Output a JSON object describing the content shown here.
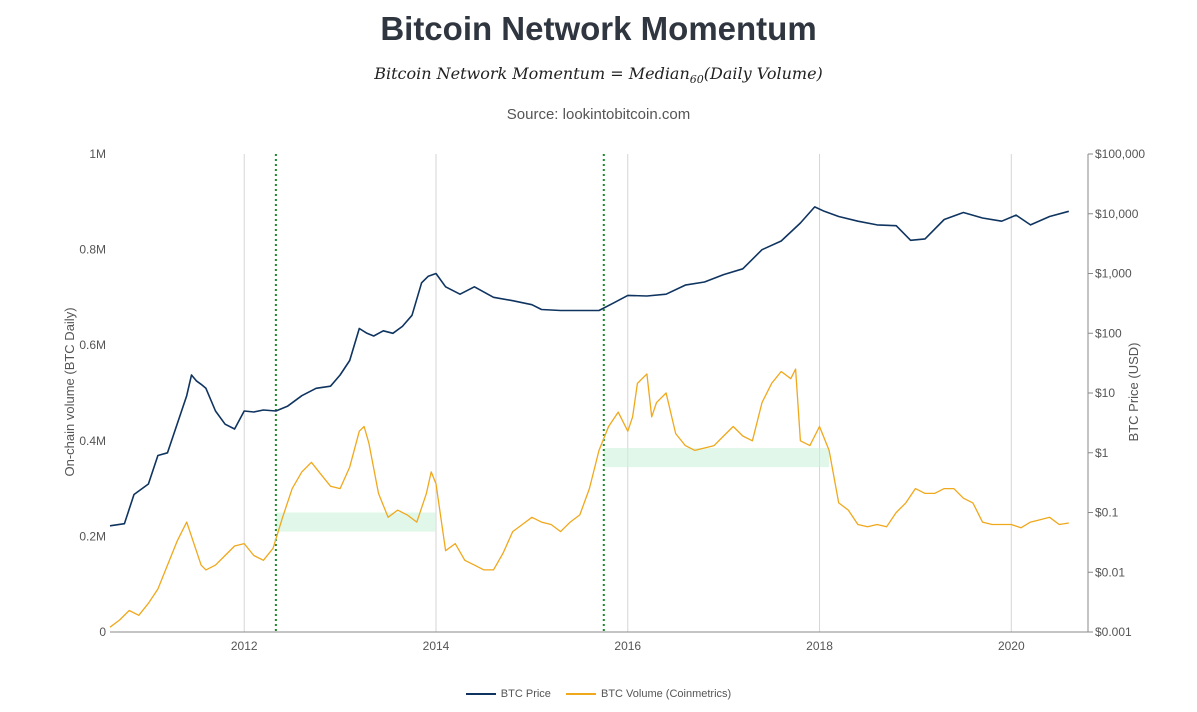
{
  "chart_data": {
    "type": "line",
    "title": "Bitcoin Network Momentum",
    "formula": {
      "lhs": "Bitcoin Network Momentum",
      "eq": " = ",
      "fn": "Median",
      "sub": "60",
      "arg": "(Daily Volume)"
    },
    "subtitle": "Source: lookintobitcoin.com",
    "ylabel_left": "On-chain volume (BTC Daily)",
    "ylabel_right": "BTC Price (USD)",
    "xlim": [
      2010.6,
      2020.8
    ],
    "ylim_left": [
      0,
      1000000
    ],
    "ylim_right_log10": [
      -3,
      5
    ],
    "x_ticks": [
      {
        "value": 2012,
        "label": "2012"
      },
      {
        "value": 2014,
        "label": "2014"
      },
      {
        "value": 2016,
        "label": "2016"
      },
      {
        "value": 2018,
        "label": "2018"
      },
      {
        "value": 2020,
        "label": "2020"
      }
    ],
    "y_left_ticks": [
      {
        "value": 0,
        "label": "0"
      },
      {
        "value": 200000,
        "label": "0.2M"
      },
      {
        "value": 400000,
        "label": "0.4M"
      },
      {
        "value": 600000,
        "label": "0.6M"
      },
      {
        "value": 800000,
        "label": "0.8M"
      },
      {
        "value": 1000000,
        "label": "1M"
      }
    ],
    "y_right_ticks": [
      {
        "value": 0.001,
        "label": "$0.001"
      },
      {
        "value": 0.01,
        "label": "$0.01"
      },
      {
        "value": 0.1,
        "label": "$0.1"
      },
      {
        "value": 1,
        "label": "$1"
      },
      {
        "value": 10,
        "label": "$10"
      },
      {
        "value": 100,
        "label": "$100"
      },
      {
        "value": 1000,
        "label": "$1,000"
      },
      {
        "value": 10000,
        "label": "$10,000"
      },
      {
        "value": 100000,
        "label": "$100,000"
      }
    ],
    "grid": {
      "vertical": true,
      "horizontal": false
    },
    "legend_position": "bottom-center",
    "signals": [
      2012.33,
      2015.75
    ],
    "bands": [
      {
        "x": [
          2012.33,
          2014.0
        ],
        "y": [
          210000,
          250000
        ]
      },
      {
        "x": [
          2015.75,
          2018.1
        ],
        "y": [
          345000,
          385000
        ]
      }
    ],
    "series": [
      {
        "name": "BTC Price",
        "axis": "right",
        "color": "#0f3460",
        "x": [
          2010.6,
          2010.75,
          2010.85,
          2011.0,
          2011.1,
          2011.2,
          2011.3,
          2011.4,
          2011.45,
          2011.5,
          2011.55,
          2011.6,
          2011.7,
          2011.8,
          2011.9,
          2012.0,
          2012.1,
          2012.2,
          2012.33,
          2012.45,
          2012.6,
          2012.75,
          2012.9,
          2013.0,
          2013.1,
          2013.2,
          2013.28,
          2013.35,
          2013.45,
          2013.55,
          2013.65,
          2013.75,
          2013.85,
          2013.92,
          2014.0,
          2014.1,
          2014.25,
          2014.4,
          2014.6,
          2014.8,
          2015.0,
          2015.1,
          2015.3,
          2015.5,
          2015.7,
          2015.85,
          2016.0,
          2016.2,
          2016.4,
          2016.6,
          2016.8,
          2017.0,
          2017.2,
          2017.4,
          2017.6,
          2017.8,
          2017.95,
          2018.05,
          2018.2,
          2018.4,
          2018.6,
          2018.8,
          2018.95,
          2019.1,
          2019.3,
          2019.5,
          2019.7,
          2019.9,
          2020.05,
          2020.2,
          2020.4,
          2020.6
        ],
        "values": [
          0.06,
          0.065,
          0.2,
          0.3,
          0.9,
          1.0,
          3.0,
          9.0,
          20,
          16,
          14,
          12,
          5,
          3,
          2.5,
          5,
          4.8,
          5.2,
          5,
          6,
          9,
          12,
          13,
          20,
          35,
          120,
          100,
          90,
          110,
          100,
          130,
          200,
          700,
          900,
          1000,
          600,
          450,
          600,
          400,
          350,
          300,
          250,
          240,
          240,
          240,
          320,
          430,
          420,
          450,
          640,
          720,
          960,
          1200,
          2500,
          3500,
          7000,
          13000,
          11000,
          9000,
          7500,
          6500,
          6300,
          3600,
          3800,
          8000,
          10500,
          8500,
          7500,
          9500,
          6500,
          9000,
          11000
        ]
      },
      {
        "name": "BTC Volume (Coinmetrics)",
        "axis": "left",
        "color": "#f0a81c",
        "x": [
          2010.6,
          2010.7,
          2010.8,
          2010.9,
          2011.0,
          2011.1,
          2011.2,
          2011.3,
          2011.4,
          2011.5,
          2011.55,
          2011.6,
          2011.7,
          2011.8,
          2011.9,
          2012.0,
          2012.1,
          2012.2,
          2012.3,
          2012.4,
          2012.5,
          2012.6,
          2012.7,
          2012.8,
          2012.9,
          2013.0,
          2013.1,
          2013.2,
          2013.25,
          2013.3,
          2013.4,
          2013.5,
          2013.6,
          2013.7,
          2013.8,
          2013.9,
          2013.95,
          2014.0,
          2014.1,
          2014.2,
          2014.3,
          2014.4,
          2014.5,
          2014.6,
          2014.7,
          2014.8,
          2014.9,
          2015.0,
          2015.1,
          2015.2,
          2015.3,
          2015.4,
          2015.5,
          2015.6,
          2015.7,
          2015.8,
          2015.9,
          2016.0,
          2016.05,
          2016.1,
          2016.2,
          2016.25,
          2016.3,
          2016.4,
          2016.5,
          2016.6,
          2016.7,
          2016.8,
          2016.9,
          2017.0,
          2017.1,
          2017.2,
          2017.3,
          2017.4,
          2017.5,
          2017.6,
          2017.7,
          2017.75,
          2017.8,
          2017.9,
          2018.0,
          2018.1,
          2018.2,
          2018.3,
          2018.4,
          2018.5,
          2018.6,
          2018.7,
          2018.8,
          2018.9,
          2019.0,
          2019.1,
          2019.2,
          2019.3,
          2019.4,
          2019.5,
          2019.6,
          2019.7,
          2019.8,
          2019.9,
          2020.0,
          2020.1,
          2020.2,
          2020.3,
          2020.4,
          2020.5,
          2020.6
        ],
        "values": [
          10000,
          25000,
          45000,
          35000,
          60000,
          90000,
          140000,
          190000,
          230000,
          170000,
          140000,
          130000,
          140000,
          160000,
          180000,
          185000,
          160000,
          150000,
          175000,
          240000,
          300000,
          335000,
          355000,
          330000,
          305000,
          300000,
          345000,
          420000,
          430000,
          395000,
          290000,
          240000,
          255000,
          245000,
          230000,
          290000,
          335000,
          310000,
          170000,
          185000,
          150000,
          140000,
          130000,
          130000,
          165000,
          210000,
          225000,
          240000,
          230000,
          225000,
          210000,
          230000,
          245000,
          300000,
          380000,
          430000,
          460000,
          420000,
          450000,
          520000,
          540000,
          450000,
          480000,
          500000,
          415000,
          390000,
          380000,
          385000,
          390000,
          410000,
          430000,
          410000,
          400000,
          480000,
          520000,
          545000,
          530000,
          550000,
          400000,
          390000,
          430000,
          380000,
          270000,
          255000,
          225000,
          220000,
          225000,
          220000,
          250000,
          270000,
          300000,
          290000,
          290000,
          300000,
          300000,
          280000,
          270000,
          230000,
          225000,
          225000,
          225000,
          218000,
          230000,
          235000,
          240000,
          225000,
          228000
        ]
      }
    ]
  }
}
